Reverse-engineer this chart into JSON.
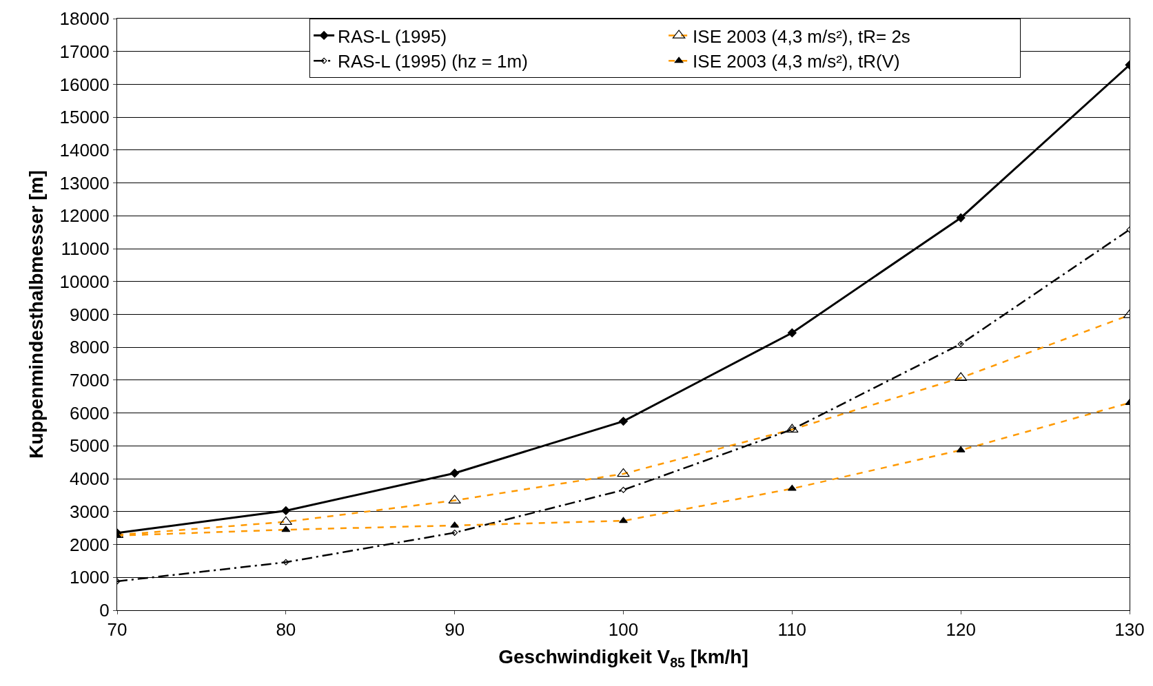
{
  "chart_data": {
    "type": "line",
    "x": [
      70,
      80,
      90,
      100,
      110,
      120,
      130
    ],
    "xlabel": "Geschwindigkeit V$_{85}$ [km/h]",
    "ylabel": "Kuppenmindesthalbmesser [m]",
    "xlim": [
      70,
      130
    ],
    "xticks": [
      70,
      80,
      90,
      100,
      110,
      120,
      130
    ],
    "ylim": [
      0,
      18000
    ],
    "yticks": [
      0,
      1000,
      2000,
      3000,
      4000,
      5000,
      6000,
      7000,
      8000,
      9000,
      10000,
      11000,
      12000,
      13000,
      14000,
      15000,
      16000,
      17000,
      18000
    ],
    "grid": "y",
    "legend": "top",
    "series": [
      {
        "name": "RAS-L (1995)",
        "color": "#000000",
        "marker": "diamond",
        "line_style": "solid",
        "values": [
          2350,
          3030,
          4170,
          5750,
          8440,
          11940,
          16590
        ]
      },
      {
        "name": "ISE 2003 (4,3 m/s²), tR= 2s",
        "color": "#ff9900",
        "marker": "triangle-open",
        "line_style": "dashed",
        "values": [
          2290,
          2690,
          3340,
          4150,
          5500,
          7070,
          8980
        ]
      },
      {
        "name": "RAS-L (1995) (hz = 1m)",
        "color": "#000000",
        "marker": "diamond-open",
        "line_style": "dashdot",
        "values": [
          880,
          1460,
          2360,
          3660,
          5500,
          8100,
          11580
        ]
      },
      {
        "name": "ISE 2003 (4,3 m/s²), tR(V)",
        "color": "#ff9900",
        "marker": "triangle",
        "line_style": "dashed",
        "values": [
          2270,
          2450,
          2580,
          2720,
          3700,
          4870,
          6310
        ]
      }
    ]
  }
}
